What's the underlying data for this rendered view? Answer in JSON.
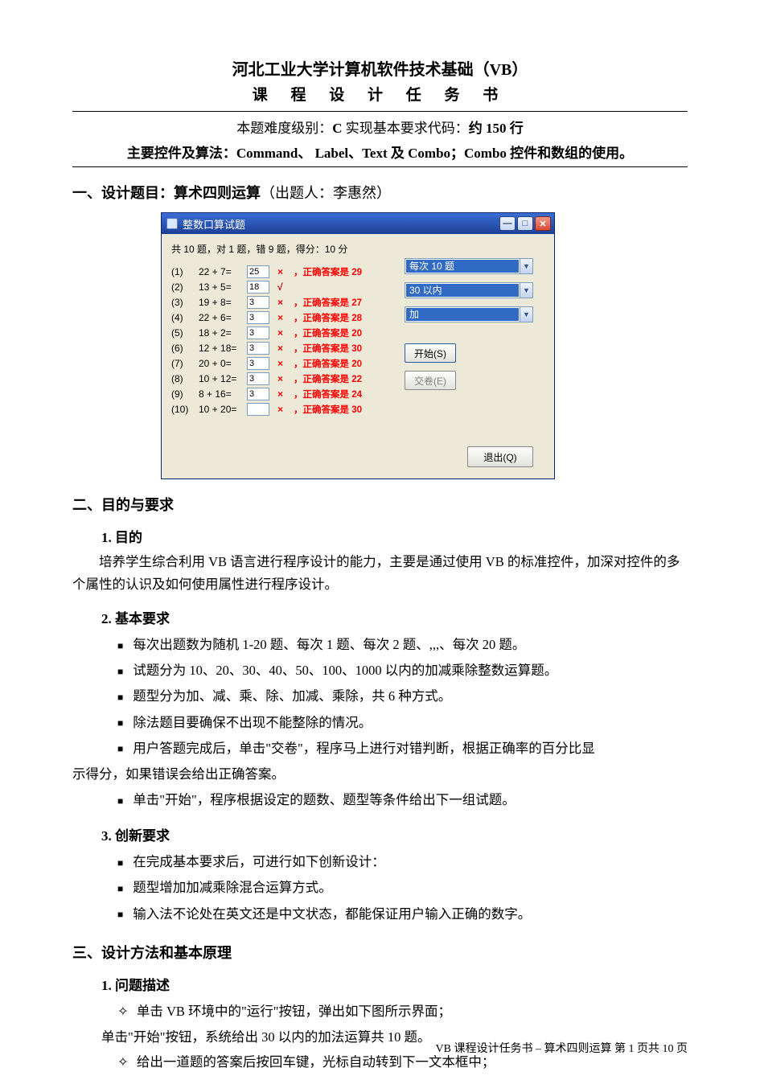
{
  "header": {
    "line1": "河北工业大学计算机软件技术基础（VB）",
    "line2": "课 程 设 计 任 务 书",
    "meta_prefix": "本题难度级别：",
    "meta_bold1": "C",
    "meta_mid": " 实现基本要求代码：",
    "meta_bold2": "约 150 行",
    "controls": "主要控件及算法：Command、 Label、Text 及 Combo；Combo 控件和数组的使用。"
  },
  "sec1": {
    "title": "一、设计题目：算术四则运算",
    "author": "（出题人：李惠然）"
  },
  "vb": {
    "title": "整数口算试题",
    "summary": "共 10 题，对 1 题，错 9 题，得分：10 分",
    "rows": [
      {
        "n": "(1)",
        "expr": "22 + 7=",
        "val": "25",
        "mark": "×",
        "ans": "，正确答案是  29"
      },
      {
        "n": "(2)",
        "expr": "13 + 5=",
        "val": "18",
        "mark": "√",
        "ans": ""
      },
      {
        "n": "(3)",
        "expr": "19 + 8=",
        "val": "3",
        "mark": "×",
        "ans": "，正确答案是  27"
      },
      {
        "n": "(4)",
        "expr": "22 + 6=",
        "val": "3",
        "mark": "×",
        "ans": "，正确答案是  28"
      },
      {
        "n": "(5)",
        "expr": "18 + 2=",
        "val": "3",
        "mark": "×",
        "ans": "，正确答案是  20"
      },
      {
        "n": "(6)",
        "expr": "12 + 18=",
        "val": "3",
        "mark": "×",
        "ans": "，正确答案是  30"
      },
      {
        "n": "(7)",
        "expr": "20 + 0=",
        "val": "3",
        "mark": "×",
        "ans": "，正确答案是  20"
      },
      {
        "n": "(8)",
        "expr": "10 + 12=",
        "val": "3",
        "mark": "×",
        "ans": "，正确答案是  22"
      },
      {
        "n": "(9)",
        "expr": "8 + 16=",
        "val": "3",
        "mark": "×",
        "ans": "，正确答案是  24"
      },
      {
        "n": "(10)",
        "expr": "10 + 20=",
        "val": "",
        "mark": "×",
        "ans": "，正确答案是  30"
      }
    ],
    "combo1": "每次 10 题",
    "combo2": "30 以内",
    "combo3": "加",
    "btn_start": "开始(S)",
    "btn_submit": "交卷(E)",
    "btn_exit": "退出(Q)"
  },
  "sec2": {
    "title": "二、目的与要求",
    "s1_title": "1. 目的",
    "s1_body": "培养学生综合利用 VB 语言进行程序设计的能力，主要是通过使用 VB 的标准控件，加深对控件的多个属性的认识及如何使用属性进行程序设计。",
    "s2_title": "2. 基本要求",
    "s2_items": [
      "每次出题数为随机 1-20 题、每次 1 题、每次 2 题、,,,、每次   20 题。",
      "试题分为 10、20、30、40、50、100、1000 以内的加减乘除整数运算题。",
      "题型分为加、减、乘、除、加减、乘除，共 6 种方式。",
      "除法题目要确保不出现不能整除的情况。",
      "用户答题完成后，单击\"交卷\"，程序马上进行对错判断，根据正确率的百分比显示得分，如果错误会给出正确答案。",
      "单击\"开始\"，程序根据设定的题数、题型等条件给出下一组试题。"
    ],
    "s3_title": "3. 创新要求",
    "s3_items": [
      "在完成基本要求后，可进行如下创新设计：",
      "题型增加加减乘除混合运算方式。",
      "输入法不论处在英文还是中文状态，都能保证用户输入正确的数字。"
    ]
  },
  "sec3": {
    "title": "三、设计方法和基本原理",
    "s1_title": "1. 问题描述",
    "items": [
      {
        "dia": true,
        "text": "单击 VB 环境中的\"运行\"按钮，弹出如下图所示界面；"
      },
      {
        "dia": false,
        "text": "单击\"开始\"按钮，系统给出 30 以内的加法运算共 10 题。"
      },
      {
        "dia": true,
        "text": "给出一道题的答案后按回车键，光标自动转到下一文本框中；"
      }
    ]
  },
  "footer": {
    "text": "VB 课程设计任务书 – 算术四则运算   第 1 页共 10 页"
  }
}
